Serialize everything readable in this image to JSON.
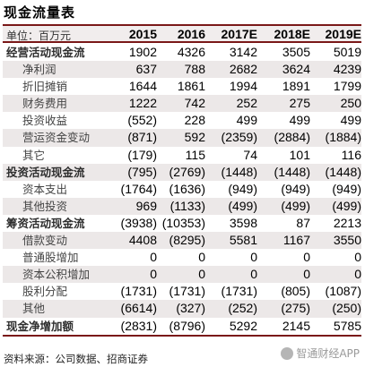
{
  "title": "现金流量表",
  "unit_label": "单位：百万元",
  "years": [
    "2015",
    "2016",
    "2017E",
    "2018E",
    "2019E"
  ],
  "rows": [
    {
      "label": "经营活动现金流",
      "values": [
        "1902",
        "4326",
        "3142",
        "3505",
        "5019"
      ],
      "bold": true,
      "shade": false
    },
    {
      "label": "净利润",
      "values": [
        "637",
        "788",
        "2682",
        "3624",
        "4239"
      ],
      "bold": false,
      "shade": true
    },
    {
      "label": "折旧摊销",
      "values": [
        "1644",
        "1861",
        "1994",
        "1891",
        "1799"
      ],
      "bold": false,
      "shade": false
    },
    {
      "label": "财务费用",
      "values": [
        "1222",
        "742",
        "252",
        "275",
        "250"
      ],
      "bold": false,
      "shade": true
    },
    {
      "label": "投资收益",
      "values": [
        "(552)",
        "228",
        "499",
        "499",
        "499"
      ],
      "bold": false,
      "shade": false
    },
    {
      "label": "营运资金变动",
      "values": [
        "(871)",
        "592",
        "(2359)",
        "(2884)",
        "(1884)"
      ],
      "bold": false,
      "shade": true
    },
    {
      "label": "其它",
      "values": [
        "(179)",
        "115",
        "74",
        "101",
        "116"
      ],
      "bold": false,
      "shade": false
    },
    {
      "label": "投资活动现金流",
      "values": [
        "(795)",
        "(2769)",
        "(1448)",
        "(1448)",
        "(1448)"
      ],
      "bold": true,
      "shade": true
    },
    {
      "label": "资本支出",
      "values": [
        "(1764)",
        "(1636)",
        "(949)",
        "(949)",
        "(949)"
      ],
      "bold": false,
      "shade": false
    },
    {
      "label": "其他投资",
      "values": [
        "969",
        "(1133)",
        "(499)",
        "(499)",
        "(499)"
      ],
      "bold": false,
      "shade": true
    },
    {
      "label": "筹资活动现金流",
      "values": [
        "(3938)",
        "(10353)",
        "3598",
        "87",
        "2213"
      ],
      "bold": true,
      "shade": false
    },
    {
      "label": "借款变动",
      "values": [
        "4408",
        "(8295)",
        "5581",
        "1167",
        "3550"
      ],
      "bold": false,
      "shade": true
    },
    {
      "label": "普通股增加",
      "values": [
        "0",
        "0",
        "0",
        "0",
        "0"
      ],
      "bold": false,
      "shade": false
    },
    {
      "label": "资本公积增加",
      "values": [
        "0",
        "0",
        "0",
        "0",
        "0"
      ],
      "bold": false,
      "shade": true
    },
    {
      "label": "股利分配",
      "values": [
        "(1731)",
        "(1731)",
        "(1731)",
        "(805)",
        "(1087)"
      ],
      "bold": false,
      "shade": false
    },
    {
      "label": "其他",
      "values": [
        "(6614)",
        "(327)",
        "(252)",
        "(275)",
        "(250)"
      ],
      "bold": false,
      "shade": true
    },
    {
      "label": "现金净增加额",
      "values": [
        "(2831)",
        "(8796)",
        "5292",
        "2145",
        "5785"
      ],
      "bold": true,
      "shade": false
    }
  ],
  "source": "资料来源：公司数据、招商证券",
  "watermark": "智通财经APP"
}
